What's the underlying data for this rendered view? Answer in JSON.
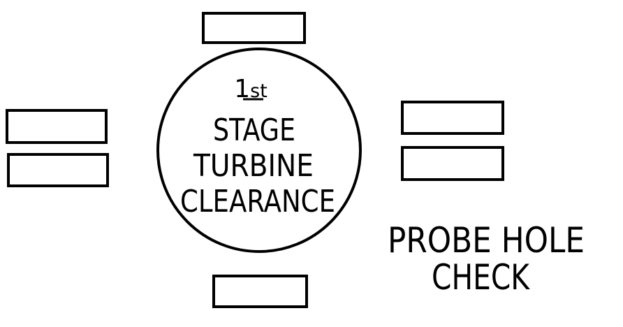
{
  "gauge": {
    "ordinal_number": "1",
    "ordinal_suffix": "st",
    "line_1": "STAGE",
    "line_2": "TURBINE",
    "line_3": "CLEARANCE"
  },
  "caption": {
    "line_1": "PROBE HOLE",
    "line_2": "CHECK"
  },
  "colors": {
    "ink": "#000000",
    "paper": "#ffffff"
  }
}
